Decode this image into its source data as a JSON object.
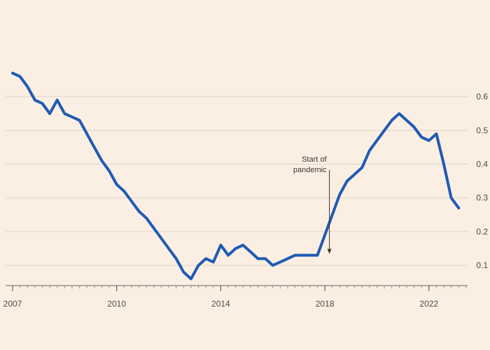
{
  "chart_data": {
    "type": "line",
    "title": "",
    "xlabel": "",
    "ylabel": "",
    "source": "",
    "y_axis_side": "right",
    "grid": "horizontal",
    "xlim": [
      2007.0,
      2022.3
    ],
    "ylim": [
      -0.3,
      6.3
    ],
    "xticks": [
      {
        "value": 2007,
        "label": "2007"
      },
      {
        "value": 2010.5,
        "label": "2010"
      },
      {
        "value": 2014,
        "label": "2014"
      },
      {
        "value": 2017.5,
        "label": "2018"
      },
      {
        "value": 2021,
        "label": "2022"
      }
    ],
    "yticks": [
      {
        "value": 0.3,
        "label": "0.1"
      },
      {
        "value": 1.3,
        "label": "0.2"
      },
      {
        "value": 2.3,
        "label": "0.3"
      },
      {
        "value": 3.3,
        "label": "0.4"
      },
      {
        "value": 4.3,
        "label": "0.5"
      },
      {
        "value": 5.3,
        "label": "0.6"
      }
    ],
    "annotation": {
      "lines": [
        "Start of",
        "pandemic"
      ],
      "x": 2017.7,
      "y_text": 3.0,
      "y_arrow": 0.6
    },
    "line_color": "#1f5bb3",
    "series": [
      {
        "name": "",
        "x": [
          2007.0,
          2007.25,
          2007.5,
          2007.75,
          2008.0,
          2008.25,
          2008.5,
          2008.75,
          2009.0,
          2009.25,
          2009.5,
          2009.75,
          2010.0,
          2010.25,
          2010.5,
          2010.75,
          2011.0,
          2011.25,
          2011.5,
          2011.75,
          2012.0,
          2012.25,
          2012.5,
          2012.75,
          2013.0,
          2013.25,
          2013.5,
          2013.75,
          2014.0,
          2014.25,
          2014.5,
          2014.75,
          2015.0,
          2015.25,
          2015.5,
          2015.75,
          2016.0,
          2016.25,
          2016.5,
          2016.75,
          2017.0,
          2017.25,
          2017.5,
          2017.75,
          2018.0,
          2018.25,
          2018.5,
          2018.75,
          2019.0,
          2019.25,
          2019.5,
          2019.75,
          2020.0,
          2020.25,
          2020.5,
          2020.75,
          2021.0,
          2021.25,
          2021.5,
          2021.75,
          2022.0
        ],
        "y": [
          6.0,
          5.9,
          5.6,
          5.2,
          5.1,
          4.8,
          5.2,
          4.8,
          4.7,
          4.6,
          4.2,
          3.8,
          3.4,
          3.1,
          2.7,
          2.5,
          2.2,
          1.9,
          1.7,
          1.4,
          1.1,
          0.8,
          0.5,
          0.1,
          -0.1,
          0.3,
          0.5,
          0.4,
          0.9,
          0.6,
          0.8,
          0.9,
          0.7,
          0.5,
          0.5,
          0.3,
          0.4,
          0.5,
          0.6,
          0.6,
          0.6,
          0.6,
          1.2,
          1.8,
          2.4,
          2.8,
          3.0,
          3.2,
          3.7,
          4.0,
          4.3,
          4.6,
          4.8,
          4.6,
          4.4,
          4.1,
          4.0,
          4.2,
          3.3,
          2.3,
          2.0
        ]
      }
    ]
  }
}
